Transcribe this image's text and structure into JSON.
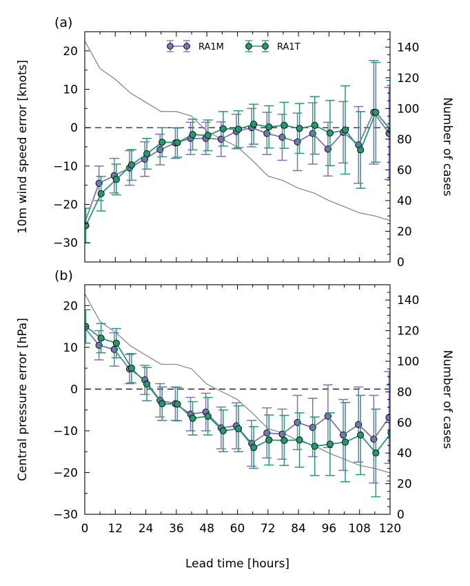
{
  "colors": {
    "ra1m": "#7b72b3",
    "ra1t": "#1f9a73",
    "cases": "#808080",
    "axis": "#000000"
  },
  "chart_data": [
    {
      "type": "line",
      "panel_label": "(a)",
      "xlabel": "",
      "ylabel": "10m wind speed error [knots]",
      "ylabel_right": "Number of cases",
      "xlim": [
        0,
        120
      ],
      "ylim": [
        -35,
        25
      ],
      "ylim_right": [
        0,
        150
      ],
      "xticks": [
        0,
        12,
        24,
        36,
        48,
        60,
        72,
        84,
        96,
        108,
        120
      ],
      "yticks": [
        -30,
        -20,
        -10,
        0,
        10,
        20
      ],
      "yticks_right": [
        0,
        20,
        40,
        60,
        80,
        100,
        120,
        140
      ],
      "legend": {
        "placement": "top-center",
        "entries": [
          "RA1M",
          "RA1T"
        ]
      },
      "zero_line": true,
      "series": [
        {
          "name": "RA1M",
          "x": [
            0,
            6,
            12,
            18,
            24,
            30,
            36,
            42,
            48,
            54,
            60,
            66,
            72,
            78,
            84,
            90,
            96,
            102,
            108,
            114,
            120
          ],
          "values": [
            -25.5,
            -14.5,
            -12.5,
            -10.5,
            -8.2,
            -5.7,
            -4,
            -2.8,
            -2.8,
            -3,
            -1,
            0,
            -1.5,
            -2.5,
            -3.7,
            -1.5,
            -5.6,
            -1.2,
            -4.5,
            4,
            -1.5
          ],
          "err": [
            0,
            4.5,
            4.5,
            4.5,
            4.5,
            4,
            4,
            4.2,
            4.2,
            4.5,
            4.5,
            5,
            5.5,
            6,
            7.5,
            8,
            7,
            8,
            10,
            13.5,
            12
          ]
        },
        {
          "name": "RA1T",
          "x": [
            0,
            6,
            12,
            18,
            24,
            30,
            36,
            42,
            48,
            54,
            60,
            66,
            72,
            78,
            84,
            90,
            96,
            102,
            108,
            114,
            120
          ],
          "values": [
            -25.5,
            -17.2,
            -13.5,
            -9.7,
            -6.8,
            -3.8,
            -3.9,
            -1.8,
            -2,
            -0.3,
            -0.4,
            0.9,
            0.2,
            0.6,
            -0.2,
            0.6,
            -1.4,
            -0.6,
            -5.8,
            4,
            -0.7
          ],
          "err": [
            4.5,
            4.5,
            4,
            4,
            4,
            3.8,
            3.8,
            4,
            4,
            4.5,
            4.8,
            5.2,
            5.5,
            6,
            6.5,
            7.5,
            8.5,
            11.5,
            10,
            13,
            13
          ]
        },
        {
          "name": "cases",
          "x": [
            0,
            6,
            12,
            18,
            24,
            30,
            36,
            42,
            48,
            54,
            60,
            66,
            72,
            78,
            84,
            90,
            96,
            102,
            108,
            114,
            120
          ],
          "values": [
            144,
            126,
            119,
            110,
            104,
            98,
            98,
            95,
            85,
            80,
            75,
            66,
            56,
            53,
            48,
            45,
            40,
            36,
            32,
            30,
            27
          ]
        }
      ]
    },
    {
      "type": "line",
      "panel_label": "(b)",
      "xlabel": "Lead time [hours]",
      "ylabel": "Central pressure error [hPa]",
      "ylabel_right": "Number of cases",
      "xlim": [
        0,
        120
      ],
      "ylim": [
        -30,
        25
      ],
      "ylim_right": [
        0,
        150
      ],
      "xticks": [
        0,
        12,
        24,
        36,
        48,
        60,
        72,
        84,
        96,
        108,
        120
      ],
      "yticks": [
        -30,
        -20,
        -10,
        0,
        10,
        20
      ],
      "yticks_right": [
        0,
        20,
        40,
        60,
        80,
        100,
        120,
        140
      ],
      "zero_line": true,
      "series": [
        {
          "name": "RA1M",
          "x": [
            0,
            6,
            12,
            18,
            24,
            30,
            36,
            42,
            48,
            54,
            60,
            66,
            72,
            78,
            84,
            90,
            96,
            102,
            108,
            114,
            120
          ],
          "values": [
            15,
            10.5,
            9.5,
            4.8,
            2.2,
            -2.7,
            -3.5,
            -6,
            -5.5,
            -9.3,
            -8.8,
            -13,
            -10.5,
            -10.8,
            -8,
            -9.2,
            -6.5,
            -11,
            -8.5,
            -12,
            -6.8
          ],
          "err": [
            0,
            3.5,
            4,
            3.5,
            3.5,
            4,
            4,
            4,
            4.5,
            5,
            5.5,
            5.5,
            6,
            6,
            6.5,
            7,
            7.5,
            8.5,
            9,
            10.5,
            11
          ]
        },
        {
          "name": "RA1T",
          "x": [
            0,
            6,
            12,
            18,
            24,
            30,
            36,
            42,
            48,
            54,
            60,
            66,
            72,
            78,
            84,
            90,
            96,
            102,
            108,
            114,
            120
          ],
          "values": [
            15,
            12.2,
            11,
            5,
            1.2,
            -3.5,
            -3.6,
            -7,
            -6.5,
            -10,
            -9.5,
            -14,
            -12.2,
            -12.3,
            -12.2,
            -13.7,
            -13.2,
            -12.7,
            -11,
            -15.3,
            -10.5
          ],
          "err": [
            4,
            3.5,
            3.5,
            3.5,
            4,
            4,
            4,
            4,
            4.5,
            5,
            5.5,
            5,
            6,
            6,
            6.5,
            7,
            7.5,
            9.5,
            9.5,
            10.5,
            11.5
          ]
        },
        {
          "name": "cases",
          "x": [
            0,
            6,
            12,
            18,
            24,
            30,
            36,
            42,
            48,
            54,
            60,
            66,
            72,
            78,
            84,
            90,
            96,
            102,
            108,
            114,
            120
          ],
          "values": [
            144,
            126,
            119,
            110,
            104,
            98,
            98,
            95,
            85,
            80,
            75,
            66,
            56,
            53,
            48,
            45,
            40,
            36,
            32,
            30,
            27
          ]
        }
      ]
    }
  ]
}
